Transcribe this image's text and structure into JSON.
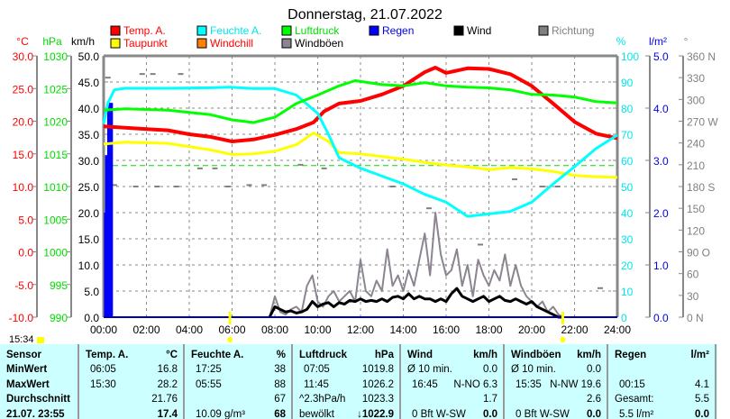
{
  "chart_data": {
    "type": "line",
    "title": "Donnerstag, 21.07.2022",
    "xlabel": "",
    "x_range_hours": [
      0,
      24
    ],
    "x_ticks": [
      "00:00",
      "02:00",
      "04:00",
      "06:00",
      "08:00",
      "10:00",
      "12:00",
      "14:00",
      "16:00",
      "18:00",
      "20:00",
      "22:00",
      "24:00"
    ],
    "axes": {
      "temp": {
        "unit": "°C",
        "range": [
          -10,
          30
        ],
        "ticks": [
          "30.0",
          "25.0",
          "20.0",
          "15.0",
          "10.0",
          "5.0",
          "0.0",
          "-5.0",
          "-10.0"
        ],
        "color": "#ff0000"
      },
      "pressure": {
        "unit": "hPa",
        "range": [
          990,
          1030
        ],
        "ticks": [
          "1030",
          "1025",
          "1020",
          "1015",
          "1010",
          "1005",
          "1000",
          "995",
          "990"
        ],
        "color": "#00dd00"
      },
      "wind": {
        "unit": "km/h",
        "range": [
          0,
          50
        ],
        "ticks": [
          "50.0",
          "45.0",
          "40.0",
          "35.0",
          "30.0",
          "25.0",
          "20.0",
          "15.0",
          "10.0",
          "5.0",
          "0.0"
        ],
        "color": "#000000"
      },
      "humidity": {
        "unit": "%",
        "range": [
          0,
          100
        ],
        "ticks": [
          "100",
          "90",
          "80",
          "70",
          "60",
          "50",
          "40",
          "30",
          "20",
          "10",
          "0"
        ],
        "color": "#00e5ee"
      },
      "rain": {
        "unit": "l/m²",
        "range": [
          0,
          5
        ],
        "ticks": [
          "5.0",
          "4.0",
          "3.0",
          "2.0",
          "1.0",
          "0.0"
        ],
        "color": "#0000ee"
      },
      "direction": {
        "unit": "°",
        "range": [
          0,
          360
        ],
        "ticks": [
          "360 N",
          "330",
          "300",
          "270 W",
          "240",
          "210",
          "180 S",
          "150",
          "120",
          "90  O",
          "60",
          "30",
          "0   N"
        ],
        "color": "#808080"
      }
    },
    "legend": [
      {
        "label": "Temp. A.",
        "color": "#ff0000",
        "text_color": "#ff0000"
      },
      {
        "label": "Feuchte A.",
        "color": "#00ffff",
        "text_color": "#00e5ee"
      },
      {
        "label": "Luftdruck",
        "color": "#00ff00",
        "text_color": "#00dd00"
      },
      {
        "label": "Regen",
        "color": "#0000ff",
        "text_color": "#0000ee"
      },
      {
        "label": "Wind",
        "color": "#000000",
        "text_color": "#000000"
      },
      {
        "label": "Richtung",
        "color": "#808080",
        "text_color": "#808080"
      },
      {
        "label": "Taupunkt",
        "color": "#ffff00",
        "text_color": "#ff0000"
      },
      {
        "label": "Windchill",
        "color": "#ff8000",
        "text_color": "#ff0000"
      },
      {
        "label": "Windböen",
        "color": "#8c8490",
        "text_color": "#000000"
      }
    ],
    "series": [
      {
        "name": "Temp. A.",
        "axis": "temp",
        "color": "#ff0000",
        "width": 4,
        "points": [
          [
            0,
            19.2
          ],
          [
            1,
            19.0
          ],
          [
            2,
            18.8
          ],
          [
            3,
            18.6
          ],
          [
            4,
            18.0
          ],
          [
            5,
            17.6
          ],
          [
            6,
            16.9
          ],
          [
            7,
            17.2
          ],
          [
            8,
            17.9
          ],
          [
            9,
            18.8
          ],
          [
            9.8,
            19.8
          ],
          [
            10.3,
            21.5
          ],
          [
            11,
            22.7
          ],
          [
            12,
            23.1
          ],
          [
            13,
            24.1
          ],
          [
            14,
            25.4
          ],
          [
            15,
            27.5
          ],
          [
            15.5,
            28.2
          ],
          [
            16,
            27.4
          ],
          [
            17,
            28.1
          ],
          [
            18,
            28.0
          ],
          [
            19,
            27.2
          ],
          [
            20,
            25.4
          ],
          [
            21,
            22.7
          ],
          [
            22,
            19.9
          ],
          [
            23,
            18.1
          ],
          [
            24,
            17.4
          ]
        ]
      },
      {
        "name": "Taupunkt",
        "axis": "temp",
        "color": "#ffff00",
        "width": 3,
        "points": [
          [
            0,
            16.5
          ],
          [
            1,
            16.8
          ],
          [
            3,
            16.6
          ],
          [
            5,
            15.6
          ],
          [
            6,
            14.9
          ],
          [
            7,
            15.0
          ],
          [
            8,
            15.4
          ],
          [
            9,
            16.4
          ],
          [
            9.8,
            18.2
          ],
          [
            10.5,
            16.9
          ],
          [
            11,
            15.2
          ],
          [
            12,
            15.0
          ],
          [
            13,
            14.6
          ],
          [
            14,
            14.2
          ],
          [
            15,
            13.7
          ],
          [
            16,
            13.3
          ],
          [
            17,
            13.0
          ],
          [
            18,
            12.6
          ],
          [
            19,
            12.9
          ],
          [
            20,
            12.7
          ],
          [
            21,
            12.3
          ],
          [
            22,
            11.7
          ],
          [
            23,
            11.5
          ],
          [
            24,
            11.4
          ]
        ]
      },
      {
        "name": "Feuchte A.",
        "axis": "humidity",
        "color": "#00ffff",
        "width": 3,
        "points": [
          [
            0,
            74
          ],
          [
            0.2,
            82
          ],
          [
            0.5,
            87
          ],
          [
            1,
            87.6
          ],
          [
            3,
            87.6
          ],
          [
            5,
            87.8
          ],
          [
            5.9,
            88
          ],
          [
            7,
            87.5
          ],
          [
            8,
            87.5
          ],
          [
            9,
            85
          ],
          [
            10,
            78
          ],
          [
            10.5,
            70
          ],
          [
            11,
            61
          ],
          [
            12,
            57
          ],
          [
            13,
            54
          ],
          [
            14,
            51
          ],
          [
            15,
            47
          ],
          [
            16,
            44
          ],
          [
            17,
            38.6
          ],
          [
            18,
            39.5
          ],
          [
            19,
            40.5
          ],
          [
            20,
            44
          ],
          [
            21,
            51
          ],
          [
            22,
            57.6
          ],
          [
            23,
            64.5
          ],
          [
            24,
            69.7
          ]
        ]
      },
      {
        "name": "Luftdruck",
        "axis": "pressure",
        "color": "#00ff00",
        "width": 3,
        "points": [
          [
            0,
            1021.7
          ],
          [
            1,
            1021.9
          ],
          [
            3,
            1021.7
          ],
          [
            5,
            1021.0
          ],
          [
            6,
            1020.2
          ],
          [
            7,
            1019.8
          ],
          [
            8,
            1020.6
          ],
          [
            9,
            1022.7
          ],
          [
            10,
            1024.0
          ],
          [
            11,
            1025.4
          ],
          [
            11.75,
            1026.2
          ],
          [
            13,
            1025.6
          ],
          [
            14,
            1025.4
          ],
          [
            15,
            1025.9
          ],
          [
            16,
            1025.4
          ],
          [
            17,
            1025.2
          ],
          [
            18,
            1025.1
          ],
          [
            19,
            1024.8
          ],
          [
            20,
            1024.1
          ],
          [
            21,
            1024.0
          ],
          [
            22,
            1023.7
          ],
          [
            23,
            1023.0
          ],
          [
            24,
            1022.8
          ]
        ]
      },
      {
        "name": "Windböen",
        "axis": "wind",
        "color": "#8c8490",
        "width": 2,
        "start": 7.75,
        "step": 0.25,
        "values": [
          0,
          4,
          1,
          0.5,
          1.5,
          2,
          1,
          6,
          8,
          3,
          2,
          4,
          5,
          3,
          4,
          5,
          3,
          11,
          5,
          4,
          7,
          5,
          13,
          6,
          8,
          5,
          9,
          6,
          11,
          16,
          8,
          20,
          12,
          8,
          9,
          13,
          6,
          10,
          4,
          11,
          8,
          6,
          9,
          7,
          12,
          6,
          10,
          6,
          4,
          3,
          2,
          3,
          1,
          2,
          0.5,
          0
        ]
      },
      {
        "name": "Wind",
        "axis": "wind",
        "color": "#000000",
        "width": 3,
        "start": 7.75,
        "step": 0.25,
        "values": [
          0,
          2,
          1.5,
          1,
          1.2,
          0.8,
          1,
          1.5,
          3,
          2,
          2.5,
          2.8,
          2,
          2.8,
          2.5,
          3.2,
          3,
          3.5,
          3,
          3.2,
          3,
          3.5,
          3,
          3.8,
          4,
          3.5,
          4.5,
          3.5,
          4,
          3.5,
          3.5,
          3,
          3.5,
          3,
          4.5,
          5.5,
          4,
          3.5,
          3,
          3.5,
          4,
          3,
          3.5,
          4,
          3.2,
          3,
          3.5,
          3,
          2.5,
          3,
          2,
          1.5,
          1,
          0.5,
          0,
          0
        ]
      }
    ],
    "rain_bars": [
      [
        0.1,
        2.0
      ],
      [
        0.15,
        3.1
      ],
      [
        0.25,
        4.1
      ],
      [
        0.35,
        4.1
      ]
    ],
    "direction_points": [
      [
        0.2,
        330
      ],
      [
        1.8,
        335
      ],
      [
        2.3,
        335
      ],
      [
        3.6,
        335
      ],
      [
        4.5,
        205
      ],
      [
        5.2,
        205
      ],
      [
        5.8,
        180
      ],
      [
        0.5,
        182
      ],
      [
        1.5,
        180
      ],
      [
        2.5,
        180
      ],
      [
        3.4,
        180
      ],
      [
        6.8,
        182
      ],
      [
        7.5,
        182
      ],
      [
        9.2,
        210
      ],
      [
        10.3,
        205
      ],
      [
        13.5,
        180
      ],
      [
        15.2,
        150
      ],
      [
        16.3,
        210
      ],
      [
        17.6,
        100
      ],
      [
        19.2,
        190
      ],
      [
        20.5,
        180
      ],
      [
        21.2,
        180
      ],
      [
        23.2,
        40
      ]
    ],
    "reference_line": {
      "axis": "wind",
      "value": 29.0,
      "color": "#00dd00"
    },
    "sun_markers": {
      "sunrise": 5.9,
      "sunset": 21.45
    }
  },
  "clock": "15:34",
  "table": {
    "columns": [
      {
        "header": "Sensor",
        "unit": "",
        "rows": [
          [
            "MinWert",
            ""
          ],
          [
            "MaxWert",
            ""
          ],
          [
            "Durchschnitt",
            ""
          ],
          [
            "21.07. 23:55",
            ""
          ]
        ]
      },
      {
        "header": "Temp. A.",
        "unit": "°C",
        "rows": [
          [
            "06:05",
            "16.8"
          ],
          [
            "15:30",
            "28.2"
          ],
          [
            "",
            "21.76"
          ],
          [
            "",
            "17.4"
          ]
        ]
      },
      {
        "header": "Feuchte A.",
        "unit": "%",
        "rows": [
          [
            "17:25",
            "38"
          ],
          [
            "05:55",
            "88"
          ],
          [
            "",
            "67"
          ],
          [
            "10.09 g/m³",
            "68"
          ]
        ]
      },
      {
        "header": "Luftdruck",
        "unit": "hPa",
        "rows": [
          [
            "07:05",
            "1019.8"
          ],
          [
            "11:45",
            "1026.2"
          ],
          [
            "^2.3hPa/h",
            "1023.3"
          ],
          [
            "bewölkt",
            "↓1022.9"
          ]
        ]
      },
      {
        "header": "Wind",
        "unit": "km/h",
        "rows": [
          [
            "Ø 10 min.",
            "0.0"
          ],
          [
            "16:45",
            "N-NO 6.3"
          ],
          [
            "",
            "1.7"
          ],
          [
            "0 Bft W-SW",
            "0.0"
          ]
        ]
      },
      {
        "header": "Windböen",
        "unit": "km/h",
        "rows": [
          [
            "Ø 10 min.",
            "0.0"
          ],
          [
            "15:35",
            "N-NW 19.6"
          ],
          [
            "",
            "2.6"
          ],
          [
            "0 Bft W-SW",
            "0.0"
          ]
        ]
      },
      {
        "header": "Regen",
        "unit": "l/m²",
        "rows": [
          [
            "",
            ""
          ],
          [
            "00:15",
            "4.1"
          ],
          [
            "Gesamt:",
            "5.5"
          ],
          [
            "5.5 l/m²",
            "0.0"
          ]
        ]
      }
    ]
  }
}
